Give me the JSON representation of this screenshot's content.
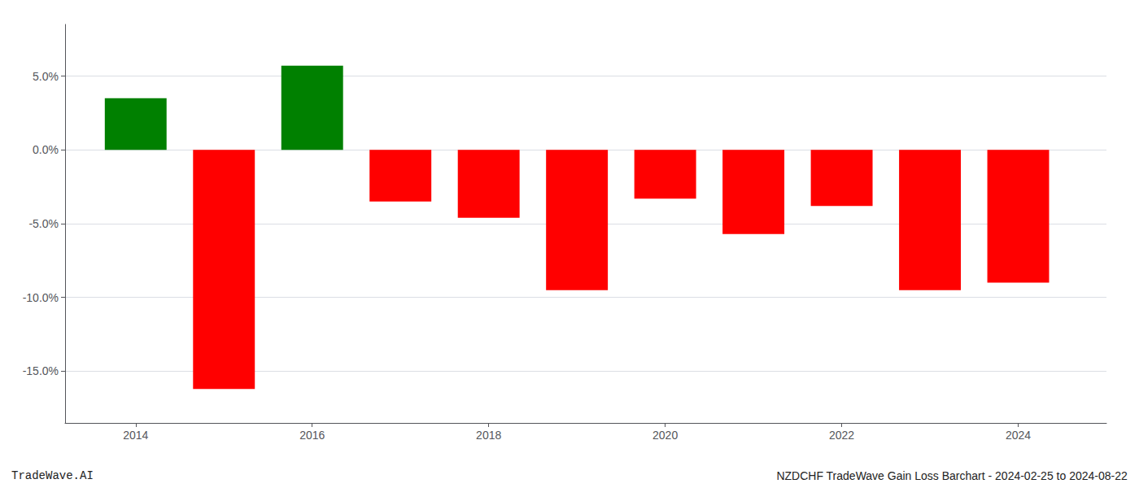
{
  "chart_data": {
    "type": "bar",
    "x": [
      2014,
      2015,
      2016,
      2017,
      2018,
      2019,
      2020,
      2021,
      2022,
      2023,
      2024
    ],
    "values": [
      3.5,
      -16.2,
      5.7,
      -3.5,
      -4.6,
      -9.5,
      -3.3,
      -5.7,
      -3.8,
      -9.5,
      -9.0
    ],
    "colors": [
      "#008000",
      "#ff0000",
      "#008000",
      "#ff0000",
      "#ff0000",
      "#ff0000",
      "#ff0000",
      "#ff0000",
      "#ff0000",
      "#ff0000",
      "#ff0000"
    ],
    "xlim": [
      2013.2,
      2025.0
    ],
    "xticks": [
      2014,
      2016,
      2018,
      2020,
      2022,
      2024
    ],
    "ylim": [
      -18.5,
      8.5
    ],
    "yticks": [
      {
        "value": -15.0,
        "label": "-15.0%"
      },
      {
        "value": -10.0,
        "label": "-10.0%"
      },
      {
        "value": -5.0,
        "label": "-5.0%"
      },
      {
        "value": 0.0,
        "label": "0.0%"
      },
      {
        "value": 5.0,
        "label": "5.0%"
      }
    ],
    "grid": true,
    "annotations": [
      "TradeWave.AI",
      "NZDCHF TradeWave Gain Loss Barchart - 2024-02-25 to 2024-08-22"
    ]
  }
}
